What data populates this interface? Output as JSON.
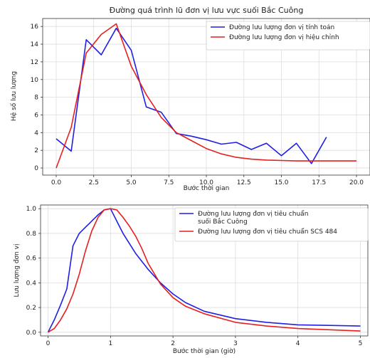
{
  "chart_data": [
    {
      "type": "line",
      "title": "Đường quá trình lũ đơn vị lưu vực suối Bắc Cuông",
      "xlabel": "Bước thời gian",
      "ylabel": "Hệ số lưu lượng",
      "xlim": [
        -0.9,
        20.9
      ],
      "ylim": [
        -0.8,
        16.9
      ],
      "xticks": [
        0.0,
        2.5,
        5.0,
        7.5,
        10.0,
        12.5,
        15.0,
        17.5,
        20.0
      ],
      "xtick_labels": [
        "0.0",
        "2.5",
        "5.0",
        "7.5",
        "10.0",
        "12.5",
        "15.0",
        "17.5",
        "20.0"
      ],
      "yticks": [
        0,
        2,
        4,
        6,
        8,
        10,
        12,
        14,
        16
      ],
      "ytick_labels": [
        "0",
        "2",
        "4",
        "6",
        "8",
        "10",
        "12",
        "14",
        "16"
      ],
      "grid": true,
      "legend_position": "top-right",
      "series": [
        {
          "name": "Đường lưu lượng đơn vị tính toán",
          "color": "#1f1fe6",
          "x": [
            0,
            1,
            2,
            3,
            4,
            5,
            6,
            7,
            8,
            9,
            10,
            11,
            12,
            13,
            14,
            15,
            16,
            17,
            18
          ],
          "y": [
            3.3,
            1.9,
            14.5,
            12.8,
            15.8,
            13.3,
            6.9,
            6.3,
            3.9,
            3.6,
            3.2,
            2.7,
            2.9,
            2.1,
            2.8,
            1.4,
            2.8,
            0.5,
            3.5
          ]
        },
        {
          "name": "Đường lưu lượng đơn vị hiệu chỉnh",
          "color": "#e61f1f",
          "x": [
            0,
            1,
            2,
            3,
            4,
            5,
            6,
            7,
            8,
            9,
            10,
            11,
            12,
            13,
            14,
            15,
            16,
            17,
            18,
            19,
            20
          ],
          "y": [
            0.0,
            4.6,
            13.0,
            15.1,
            16.3,
            11.5,
            8.3,
            5.7,
            4.0,
            3.1,
            2.2,
            1.6,
            1.2,
            1.0,
            0.9,
            0.85,
            0.8,
            0.8,
            0.8,
            0.8,
            0.8
          ]
        }
      ]
    },
    {
      "type": "line",
      "title": "",
      "xlabel": "Bước thời gian (giờ)",
      "ylabel": "Lưu lượng đơn vị",
      "xlim": [
        -0.12,
        5.12
      ],
      "ylim": [
        -0.03,
        1.03
      ],
      "xticks": [
        0,
        1,
        2,
        3,
        4,
        5
      ],
      "xtick_labels": [
        "0",
        "1",
        "2",
        "3",
        "4",
        "5"
      ],
      "yticks": [
        0.0,
        0.2,
        0.4,
        0.6,
        0.8,
        1.0
      ],
      "ytick_labels": [
        "0.0",
        "0.2",
        "0.4",
        "0.6",
        "0.8",
        "1.0"
      ],
      "grid": true,
      "legend_position": "top-right",
      "series": [
        {
          "name": "Đường lưu lượng đơn vị tiêu chuẩn\nsuối Bắc Cuông",
          "color": "#1f1fe6",
          "x": [
            0,
            0.1,
            0.2,
            0.3,
            0.4,
            0.5,
            0.6,
            0.7,
            0.8,
            0.9,
            1.0,
            1.1,
            1.2,
            1.4,
            1.6,
            1.8,
            2.0,
            2.2,
            2.5,
            3.0,
            3.5,
            4.0,
            4.5,
            5.0
          ],
          "y": [
            0.0,
            0.1,
            0.22,
            0.35,
            0.7,
            0.8,
            0.85,
            0.9,
            0.95,
            0.99,
            1.0,
            0.9,
            0.8,
            0.64,
            0.51,
            0.4,
            0.31,
            0.24,
            0.17,
            0.11,
            0.08,
            0.06,
            0.055,
            0.05
          ]
        },
        {
          "name": "Đường lưu lượng đơn vị tiêu chuẩn SCS 484",
          "color": "#e61f1f",
          "x": [
            0,
            0.1,
            0.2,
            0.3,
            0.4,
            0.5,
            0.6,
            0.7,
            0.8,
            0.9,
            1.0,
            1.1,
            1.2,
            1.3,
            1.4,
            1.5,
            1.6,
            1.8,
            2.0,
            2.2,
            2.5,
            3.0,
            3.5,
            4.0,
            4.5,
            5.0
          ],
          "y": [
            0.0,
            0.03,
            0.1,
            0.19,
            0.31,
            0.47,
            0.66,
            0.82,
            0.93,
            0.99,
            1.0,
            0.99,
            0.93,
            0.86,
            0.78,
            0.68,
            0.56,
            0.39,
            0.28,
            0.21,
            0.15,
            0.08,
            0.05,
            0.03,
            0.02,
            0.01
          ]
        }
      ]
    }
  ]
}
